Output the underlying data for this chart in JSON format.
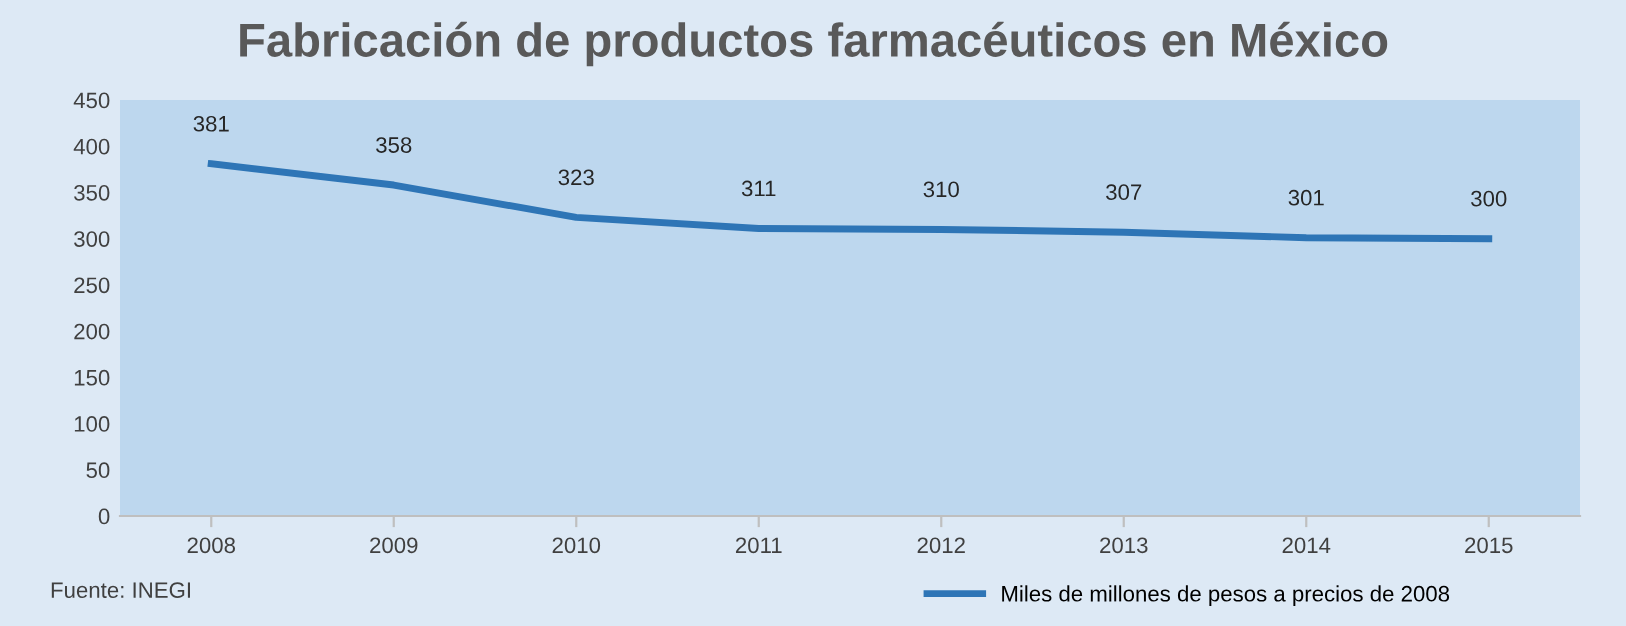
{
  "chart_data": {
    "type": "line",
    "title": "Fabricación de productos farmacéuticos en México",
    "categories": [
      "2008",
      "2009",
      "2010",
      "2011",
      "2012",
      "2013",
      "2014",
      "2015"
    ],
    "series": [
      {
        "name": "Miles de millones de pesos a precios de 2008",
        "color": "#2e75b6",
        "values": [
          381,
          358,
          323,
          311,
          310,
          307,
          301,
          300
        ]
      }
    ],
    "ylim": [
      0,
      450
    ],
    "yticks": [
      0,
      50,
      100,
      150,
      200,
      250,
      300,
      350,
      400,
      450
    ],
    "grid": false,
    "legend": "bottom right",
    "data_labels": true,
    "marker": "none",
    "line_style": "solid",
    "annotations": [
      "Fuente: INEGI"
    ]
  }
}
